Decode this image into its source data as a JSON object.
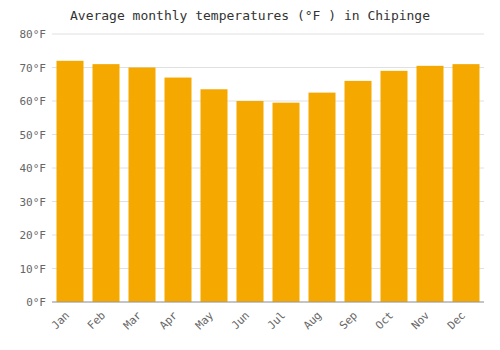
{
  "chart_data": {
    "type": "bar",
    "title": "Average monthly temperatures (°F ) in Chipinge",
    "categories": [
      "Jan",
      "Feb",
      "Mar",
      "Apr",
      "May",
      "Jun",
      "Jul",
      "Aug",
      "Sep",
      "Oct",
      "Nov",
      "Dec"
    ],
    "values": [
      72,
      71,
      70,
      67,
      63.5,
      60,
      59.5,
      62.5,
      66,
      69,
      70.5,
      71
    ],
    "color": "#F5A800",
    "ylim": [
      0,
      80
    ],
    "yticks": [
      {
        "value": 0,
        "label": "0°F"
      },
      {
        "value": 10,
        "label": "10°F"
      },
      {
        "value": 20,
        "label": "20°F"
      },
      {
        "value": 30,
        "label": "30°F"
      },
      {
        "value": 40,
        "label": "40°F"
      },
      {
        "value": 50,
        "label": "50°F"
      },
      {
        "value": 60,
        "label": "60°F"
      },
      {
        "value": 70,
        "label": "70°F"
      },
      {
        "value": 80,
        "label": "80°F"
      }
    ],
    "grid": true
  }
}
